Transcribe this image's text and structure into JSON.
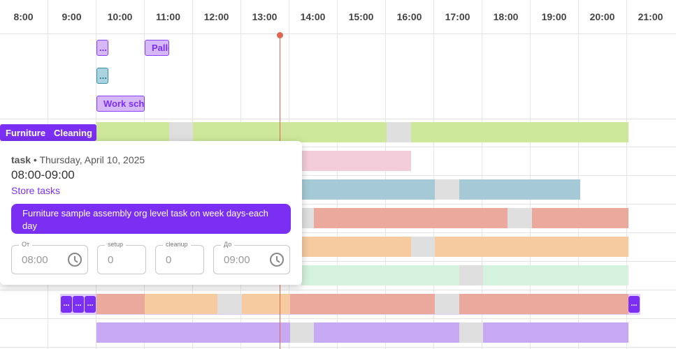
{
  "header": {
    "hours": [
      "8:00",
      "9:00",
      "10:00",
      "11:00",
      "12:00",
      "13:00",
      "14:00",
      "15:00",
      "16:00",
      "17:00",
      "18:00",
      "19:00",
      "20:00",
      "21:00"
    ]
  },
  "top_chips": {
    "chip_a": "...",
    "chip_pallet": "Palle",
    "chip_b": "...",
    "chip_work": "Work sch"
  },
  "row_tags": {
    "furniture": "Furniture",
    "cleaning": "Cleaning"
  },
  "overflow_buttons": [
    "...",
    "...",
    "...",
    "..."
  ],
  "popup": {
    "kind": "task",
    "date": " • Thursday, April 10, 2025",
    "time_range": "08:00-09:00",
    "category": "Store tasks",
    "description": "Furniture sample assembly org level task on week days-each day",
    "fields": {
      "from_label": "От",
      "from_value": "08:00",
      "setup_label": "setup",
      "setup_value": "0",
      "cleanup_label": "cleanup",
      "cleanup_value": "0",
      "to_label": "До",
      "to_value": "09:00"
    }
  },
  "colors": {
    "green": "#cde89a",
    "pink": "#f3cdda",
    "blue": "#a5cad6",
    "salmon": "#eba89c",
    "peach": "#f6cba0",
    "mint": "#d4f2de",
    "lavender": "#c7a8f2",
    "gray": "#dfdfdf",
    "accent": "#7b2ff2",
    "now_line": "#e06650"
  }
}
